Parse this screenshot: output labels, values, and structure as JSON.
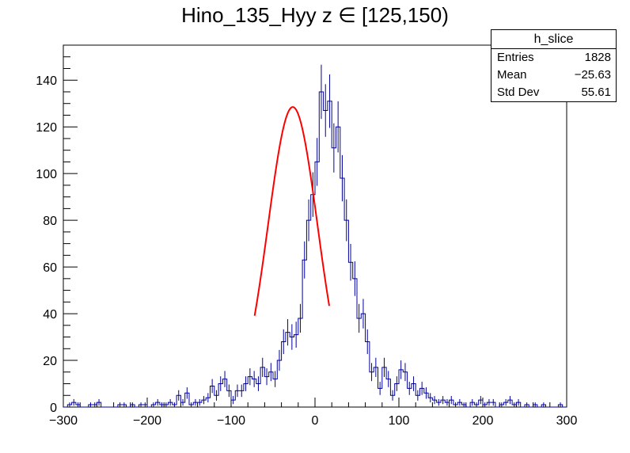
{
  "title": "Hino_135_Hyy z  ∈ [125,150)",
  "stats_box": {
    "name": "h_slice",
    "rows": [
      {
        "key": "Entries",
        "value": "1828"
      },
      {
        "key": "Mean",
        "value": "−25.63"
      },
      {
        "key": "Std Dev",
        "value": "55.61"
      }
    ]
  },
  "chart_data": {
    "type": "bar",
    "style": "step histogram with error bars and gaussian fit",
    "title": "Hino_135_Hyy z  ∈ [125,150)",
    "xlabel": "",
    "ylabel": "",
    "xlim": [
      -300,
      300
    ],
    "ylim": [
      0,
      155
    ],
    "x_ticks": [
      -300,
      -200,
      -100,
      0,
      100,
      200,
      300
    ],
    "x_tick_labels": [
      "−300",
      "−200",
      "−100",
      "0",
      "100",
      "200",
      "300"
    ],
    "y_ticks": [
      0,
      20,
      40,
      60,
      80,
      100,
      120,
      140
    ],
    "y_tick_labels": [
      "0",
      "20",
      "40",
      "60",
      "80",
      "100",
      "120",
      "140"
    ],
    "bin_width": 5,
    "bin_low_edges": [
      -300,
      -295,
      -290,
      -285,
      -280,
      -275,
      -270,
      -265,
      -260,
      -255,
      -250,
      -245,
      -240,
      -235,
      -230,
      -225,
      -220,
      -215,
      -210,
      -205,
      -200,
      -195,
      -190,
      -185,
      -180,
      -175,
      -170,
      -165,
      -160,
      -155,
      -150,
      -145,
      -140,
      -135,
      -130,
      -125,
      -120,
      -115,
      -110,
      -105,
      -100,
      -95,
      -90,
      -85,
      -80,
      -75,
      -70,
      -65,
      -60,
      -55,
      -50,
      -45,
      -40,
      -35,
      -30,
      -25,
      -20,
      -15,
      -10,
      -5,
      0,
      5,
      10,
      15,
      20,
      25,
      30,
      35,
      40,
      45,
      50,
      55,
      60,
      65,
      70,
      75,
      80,
      85,
      90,
      95,
      100,
      105,
      110,
      115,
      120,
      125,
      130,
      135,
      140,
      145,
      150,
      155,
      160,
      165,
      170,
      175,
      180,
      185,
      190,
      195,
      200,
      205,
      210,
      215,
      220,
      225,
      230,
      235,
      240,
      245,
      250,
      255,
      260,
      265,
      270,
      275,
      280,
      285,
      290,
      295
    ],
    "counts": [
      0,
      1,
      2,
      1,
      0,
      0,
      1,
      1,
      2,
      0,
      0,
      0,
      0,
      1,
      1,
      0,
      1,
      0,
      1,
      1,
      0,
      1,
      2,
      1,
      1,
      2,
      1,
      5,
      2,
      6,
      1,
      2,
      2,
      3,
      4,
      9,
      5,
      10,
      12,
      7,
      3,
      7,
      7,
      10,
      13,
      12,
      10,
      17,
      13,
      15,
      12,
      20,
      28,
      32,
      30,
      31,
      38,
      63,
      80,
      91,
      105,
      135,
      127,
      131,
      111,
      120,
      98,
      80,
      62,
      55,
      38,
      40,
      28,
      15,
      17,
      8,
      17,
      12,
      5,
      10,
      16,
      15,
      8,
      10,
      5,
      8,
      6,
      4,
      3,
      2,
      3,
      2,
      3,
      1,
      2,
      1,
      0,
      2,
      1,
      3,
      1,
      2,
      2,
      0,
      1,
      2,
      3,
      1,
      2,
      0,
      1,
      0,
      1,
      0,
      1,
      0,
      0,
      0,
      1,
      0
    ],
    "fit": {
      "type": "gaussian",
      "constant": 128.5,
      "mean": -26.5,
      "sigma": 29.5,
      "range": [
        -72,
        17
      ],
      "color": "#ff0000"
    },
    "histogram_color": "#000099",
    "grid": false,
    "legend": "top-right"
  }
}
